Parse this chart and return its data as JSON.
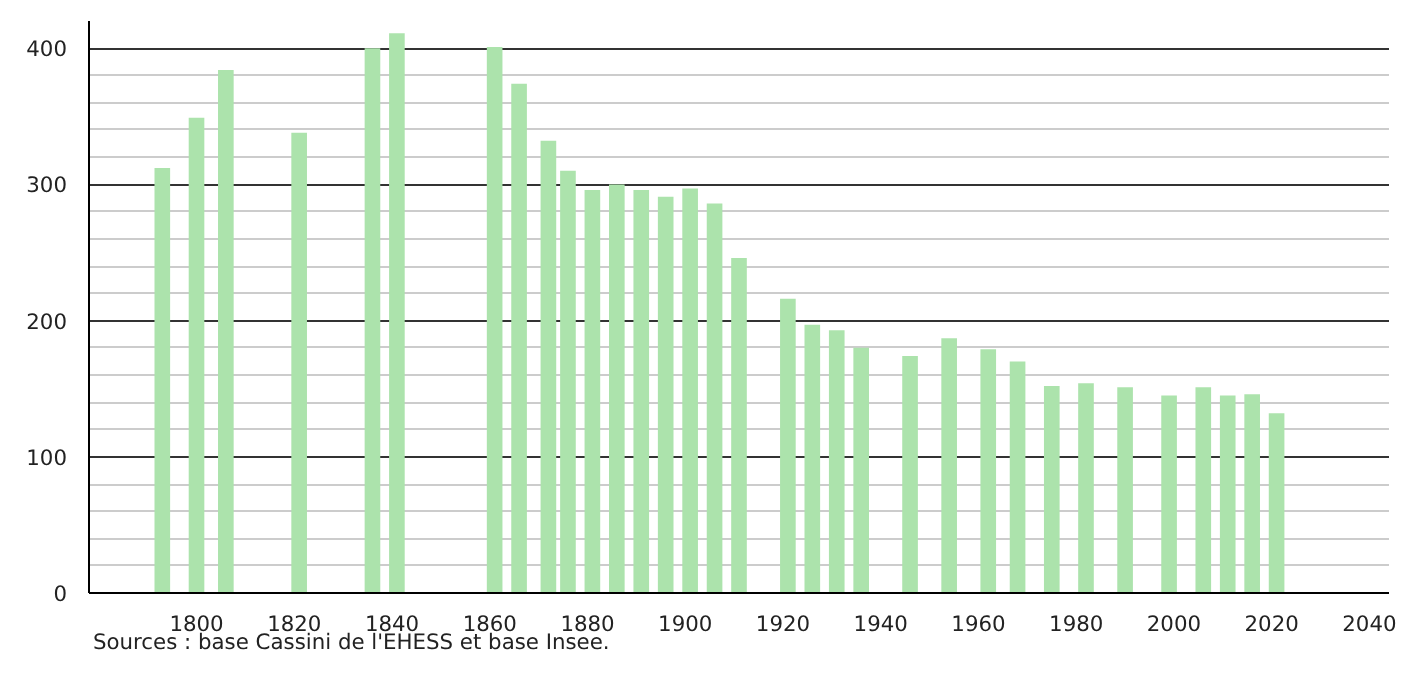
{
  "chart_data": {
    "type": "bar",
    "x": [
      1793,
      1800,
      1806,
      1821,
      1836,
      1841,
      1861,
      1866,
      1872,
      1876,
      1881,
      1886,
      1891,
      1896,
      1901,
      1906,
      1911,
      1921,
      1926,
      1931,
      1936,
      1946,
      1954,
      1962,
      1968,
      1975,
      1982,
      1990,
      1999,
      2006,
      2011,
      2016,
      2021
    ],
    "values": [
      312,
      349,
      384,
      338,
      400,
      411,
      401,
      374,
      332,
      310,
      296,
      300,
      296,
      291,
      297,
      286,
      246,
      216,
      197,
      193,
      180,
      174,
      187,
      179,
      170,
      152,
      154,
      151,
      145,
      151,
      145,
      146,
      132
    ],
    "color": "#ace3ac",
    "xlim": [
      1778,
      2044
    ],
    "xticks": [
      1800,
      1820,
      1840,
      1860,
      1880,
      1900,
      1920,
      1940,
      1960,
      1980,
      2000,
      2020,
      2040
    ],
    "ylim": [
      0,
      420
    ],
    "yticks": [
      0,
      100,
      200,
      300,
      400
    ],
    "grid": "y",
    "annotations": [
      "Sources : base Cassini de l'EHESS et base Insee."
    ]
  }
}
